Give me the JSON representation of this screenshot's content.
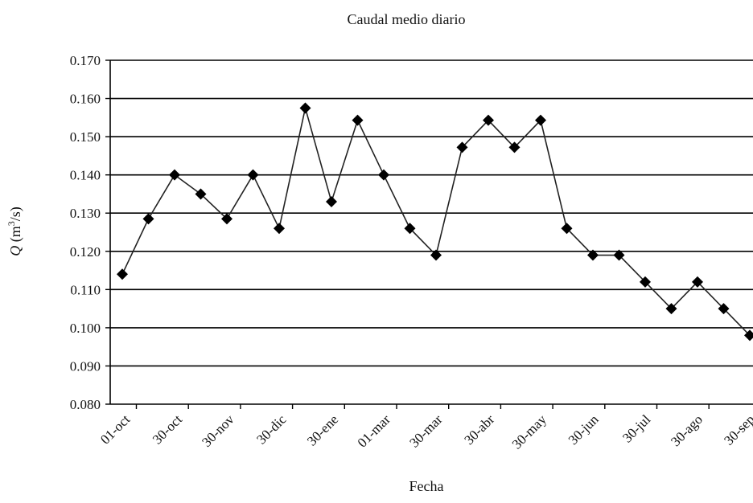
{
  "chart_data": {
    "type": "line",
    "title": "Caudal medio diario",
    "xlabel": "Fecha",
    "ylabel": {
      "italic": "Q",
      "pre": " (m",
      "sup": "3",
      "post": "/s)"
    },
    "ylim": [
      0.08,
      0.17
    ],
    "yticks": [
      "0.080",
      "0.090",
      "0.100",
      "0.110",
      "0.120",
      "0.130",
      "0.140",
      "0.150",
      "0.160",
      "0.170"
    ],
    "xtick_labels": [
      "01-oct",
      "30-oct",
      "30-nov",
      "30-dic",
      "30-ene",
      "01-mar",
      "30-mar",
      "30-abr",
      "30-may",
      "30-jun",
      "30-jul",
      "30-ago",
      "30-sep"
    ],
    "grid": "horizontal",
    "marker": "diamond",
    "series": [
      {
        "values": [
          0.114,
          0.1285,
          0.14,
          0.135,
          0.1285,
          0.14,
          0.126,
          0.1575,
          0.133,
          0.1543,
          0.14,
          0.126,
          0.119,
          0.1472,
          0.1543,
          0.1472,
          0.1543,
          0.126,
          0.119,
          0.119,
          0.112,
          0.105,
          0.112,
          0.105,
          0.098
        ]
      }
    ],
    "colors": {
      "line": "#222222",
      "marker": "#000000",
      "grid": "#000000"
    }
  }
}
